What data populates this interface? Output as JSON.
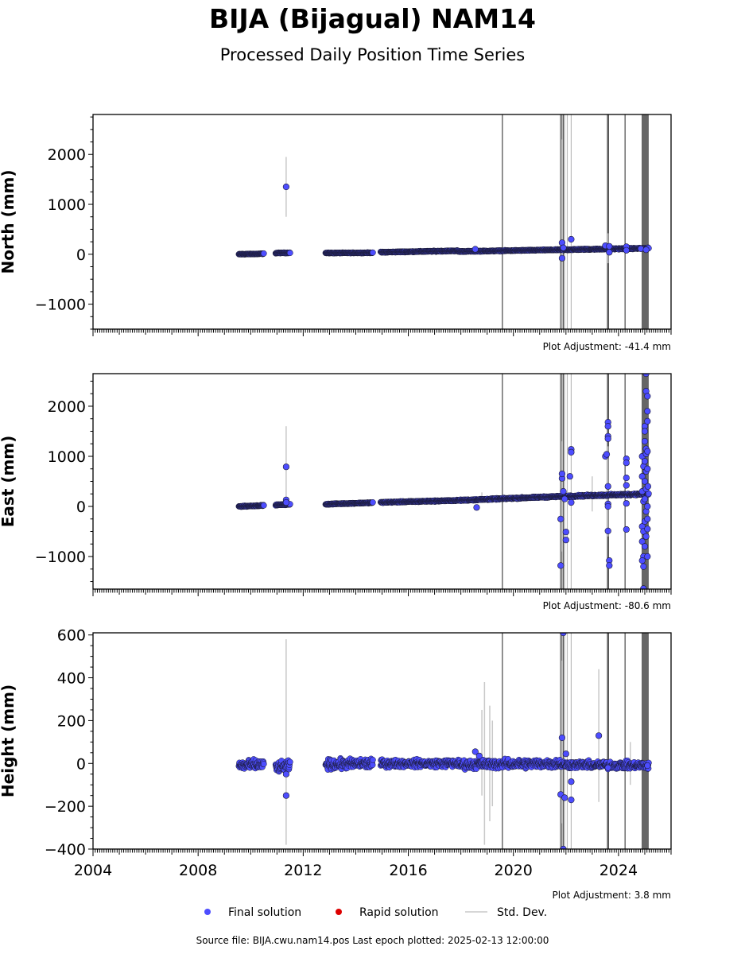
{
  "title": "BIJA (Bijagual) NAM14",
  "subtitle": "Processed Daily Position Time Series",
  "footer": "Source file: BIJA.cwu.nam14.pos  Last epoch plotted: 2025-02-13 12:00:00",
  "legend": {
    "final": "Final solution",
    "rapid": "Rapid solution",
    "std": "Std. Dev.",
    "placement": "bottom-center"
  },
  "colors": {
    "final": "#4d4dff",
    "rapid": "#dd0000",
    "std": "#c8c8c8",
    "event_line": "#555555"
  },
  "chart_data": [
    {
      "type": "scatter",
      "panel": "north",
      "ylabel": "North (mm)",
      "adjustment": "Plot Adjustment: -41.4 mm",
      "xlim": [
        2004,
        2026
      ],
      "ylim": [
        -1500,
        2800
      ],
      "yticks": [
        -1000,
        0,
        1000,
        2000
      ],
      "yticklabels": [
        "−1000",
        "0",
        "1000",
        "2000"
      ],
      "segments": [
        {
          "x0": 2009.55,
          "x1": 2010.5,
          "y0": 0,
          "y1": 10,
          "noise": 6
        },
        {
          "x0": 2010.95,
          "x1": 2011.5,
          "y0": 25,
          "y1": 30,
          "noise": 6
        },
        {
          "x0": 2012.85,
          "x1": 2014.65,
          "y0": 25,
          "y1": 30,
          "noise": 6
        },
        {
          "x0": 2014.95,
          "x1": 2017.9,
          "y0": 40,
          "y1": 70,
          "noise": 8
        },
        {
          "x0": 2017.9,
          "x1": 2021.8,
          "y0": 55,
          "y1": 90,
          "noise": 8
        },
        {
          "x0": 2021.8,
          "x1": 2025.15,
          "y0": 90,
          "y1": 120,
          "noise": 10
        }
      ],
      "points": [
        [
          2011.35,
          1350
        ],
        [
          2018.55,
          100
        ],
        [
          2021.85,
          230
        ],
        [
          2021.85,
          -80
        ],
        [
          2021.9,
          130
        ],
        [
          2022.2,
          300
        ],
        [
          2023.5,
          170
        ],
        [
          2023.65,
          160
        ],
        [
          2023.65,
          40
        ],
        [
          2024.3,
          150
        ],
        [
          2024.3,
          80
        ],
        [
          2024.85,
          110
        ],
        [
          2025.05,
          90
        ]
      ],
      "errorbars": [
        [
          2011.35,
          1350,
          600
        ],
        [
          2021.85,
          300,
          2000
        ],
        [
          2023.6,
          120,
          300
        ]
      ],
      "event_lines": [
        2019.58,
        2021.82,
        2021.9,
        2023.58,
        2023.62,
        2024.25
      ],
      "std_lines": [
        2021.78,
        2021.86,
        2021.95,
        2022.05,
        2022.2
      ],
      "event_band": [
        2024.88,
        2025.15
      ]
    },
    {
      "type": "scatter",
      "panel": "east",
      "ylabel": "East (mm)",
      "adjustment": "Plot Adjustment: -80.6 mm",
      "xlim": [
        2004,
        2026
      ],
      "ylim": [
        -1650,
        2650
      ],
      "yticks": [
        -1000,
        0,
        1000,
        2000
      ],
      "yticklabels": [
        "−1000",
        "0",
        "1000",
        "2000"
      ],
      "segments": [
        {
          "x0": 2009.55,
          "x1": 2010.5,
          "y0": 0,
          "y1": 20,
          "noise": 8
        },
        {
          "x0": 2010.95,
          "x1": 2011.5,
          "y0": 30,
          "y1": 40,
          "noise": 8
        },
        {
          "x0": 2012.85,
          "x1": 2014.65,
          "y0": 45,
          "y1": 75,
          "noise": 8
        },
        {
          "x0": 2014.95,
          "x1": 2017.9,
          "y0": 80,
          "y1": 120,
          "noise": 10
        },
        {
          "x0": 2017.9,
          "x1": 2021.8,
          "y0": 120,
          "y1": 200,
          "noise": 12
        },
        {
          "x0": 2021.8,
          "x1": 2025.15,
          "y0": 200,
          "y1": 250,
          "noise": 15
        }
      ],
      "points": [
        [
          2011.35,
          790
        ],
        [
          2011.35,
          130
        ],
        [
          2011.35,
          80
        ],
        [
          2018.6,
          -20
        ],
        [
          2021.8,
          -250
        ],
        [
          2021.8,
          -1180
        ],
        [
          2021.85,
          560
        ],
        [
          2021.85,
          650
        ],
        [
          2021.9,
          300
        ],
        [
          2021.95,
          150
        ],
        [
          2022.0,
          -510
        ],
        [
          2022.0,
          -670
        ],
        [
          2022.15,
          600
        ],
        [
          2022.2,
          1140
        ],
        [
          2022.2,
          1080
        ],
        [
          2022.2,
          80
        ],
        [
          2023.5,
          1000
        ],
        [
          2023.55,
          1040
        ],
        [
          2023.6,
          1680
        ],
        [
          2023.6,
          1600
        ],
        [
          2023.6,
          1400
        ],
        [
          2023.6,
          1350
        ],
        [
          2023.6,
          400
        ],
        [
          2023.6,
          50
        ],
        [
          2023.6,
          0
        ],
        [
          2023.6,
          -490
        ],
        [
          2023.65,
          -1080
        ],
        [
          2023.65,
          -1180
        ],
        [
          2024.3,
          950
        ],
        [
          2024.3,
          870
        ],
        [
          2024.3,
          570
        ],
        [
          2024.3,
          420
        ],
        [
          2024.3,
          60
        ],
        [
          2024.3,
          -460
        ],
        [
          2024.9,
          1000
        ],
        [
          2024.95,
          800
        ],
        [
          2024.9,
          600
        ],
        [
          2024.9,
          300
        ],
        [
          2024.95,
          100
        ],
        [
          2024.9,
          -400
        ],
        [
          2024.95,
          -500
        ],
        [
          2024.9,
          -700
        ],
        [
          2024.95,
          -1000
        ],
        [
          2024.9,
          -1080
        ],
        [
          2024.95,
          -1200
        ],
        [
          2024.95,
          -1640
        ],
        [
          2025.0,
          1600
        ],
        [
          2025.0,
          1500
        ],
        [
          2025.0,
          1300
        ],
        [
          2025.05,
          1150
        ],
        [
          2025.05,
          1050
        ],
        [
          2025.0,
          900
        ],
        [
          2025.05,
          700
        ],
        [
          2025.0,
          500
        ],
        [
          2025.05,
          350
        ],
        [
          2025.0,
          150
        ],
        [
          2025.05,
          -100
        ],
        [
          2025.0,
          -300
        ],
        [
          2025.05,
          -600
        ],
        [
          2025.0,
          -800
        ],
        [
          2025.05,
          2650
        ],
        [
          2025.05,
          2300
        ],
        [
          2025.1,
          2200
        ],
        [
          2025.1,
          1900
        ],
        [
          2025.1,
          1700
        ],
        [
          2025.1,
          1100
        ],
        [
          2025.1,
          750
        ],
        [
          2025.1,
          0
        ],
        [
          2025.1,
          -250
        ],
        [
          2025.1,
          -450
        ],
        [
          2025.1,
          -1000
        ],
        [
          2025.12,
          400
        ]
      ],
      "errorbars": [
        [
          2011.35,
          800,
          800
        ],
        [
          2018.8,
          180,
          100
        ],
        [
          2021.85,
          200,
          1100
        ],
        [
          2023.0,
          250,
          350
        ],
        [
          2023.6,
          300,
          900
        ]
      ],
      "event_lines": [
        2019.58,
        2021.82,
        2021.9,
        2023.58,
        2023.62,
        2024.25
      ],
      "std_lines": [
        2021.78,
        2021.86,
        2021.95,
        2022.05,
        2022.2
      ],
      "event_band": [
        2024.88,
        2025.15
      ]
    },
    {
      "type": "scatter",
      "panel": "height",
      "ylabel": "Height (mm)",
      "adjustment": "Plot Adjustment: 3.8 mm",
      "xlim": [
        2004,
        2026
      ],
      "xticks": [
        2004,
        2008,
        2012,
        2016,
        2020,
        2024
      ],
      "xticklabels": [
        "2004",
        "2008",
        "2012",
        "2016",
        "2020",
        "2024"
      ],
      "ylim": [
        -400,
        610
      ],
      "yticks": [
        -400,
        -200,
        0,
        200,
        400,
        600
      ],
      "yticklabels": [
        "−400",
        "−200",
        "0",
        "200",
        "400",
        "600"
      ],
      "segments": [
        {
          "x0": 2009.55,
          "x1": 2010.5,
          "y0": -10,
          "y1": -5,
          "noise": 20
        },
        {
          "x0": 2010.95,
          "x1": 2011.5,
          "y0": -20,
          "y1": -10,
          "noise": 20
        },
        {
          "x0": 2012.85,
          "x1": 2014.65,
          "y0": -5,
          "y1": 0,
          "noise": 20
        },
        {
          "x0": 2014.95,
          "x1": 2017.9,
          "y0": 0,
          "y1": 0,
          "noise": 15
        },
        {
          "x0": 2017.9,
          "x1": 2021.8,
          "y0": -5,
          "y1": 0,
          "noise": 18
        },
        {
          "x0": 2021.8,
          "x1": 2025.15,
          "y0": -5,
          "y1": -10,
          "noise": 15
        }
      ],
      "points": [
        [
          2011.35,
          -150
        ],
        [
          2011.35,
          -50
        ],
        [
          2018.55,
          55
        ],
        [
          2018.7,
          35
        ],
        [
          2021.8,
          -145
        ],
        [
          2021.85,
          120
        ],
        [
          2021.9,
          610
        ],
        [
          2021.9,
          -400
        ],
        [
          2021.95,
          -160
        ],
        [
          2022.0,
          45
        ],
        [
          2022.2,
          -170
        ],
        [
          2022.2,
          -85
        ],
        [
          2023.25,
          130
        ],
        [
          2023.6,
          -20
        ],
        [
          2025.1,
          -10
        ]
      ],
      "errorbars": [
        [
          2011.35,
          100,
          480
        ],
        [
          2018.8,
          50,
          200
        ],
        [
          2018.9,
          0,
          380
        ],
        [
          2019.1,
          0,
          270
        ],
        [
          2019.2,
          0,
          200
        ],
        [
          2021.85,
          100,
          380
        ],
        [
          2023.25,
          130,
          310
        ],
        [
          2024.45,
          0,
          100
        ]
      ],
      "event_lines": [
        2019.58,
        2021.82,
        2021.9,
        2023.58,
        2023.62,
        2024.25
      ],
      "std_lines": [
        2021.78,
        2021.86,
        2021.95,
        2022.05,
        2022.2
      ],
      "event_band": [
        2024.88,
        2025.15
      ]
    }
  ]
}
